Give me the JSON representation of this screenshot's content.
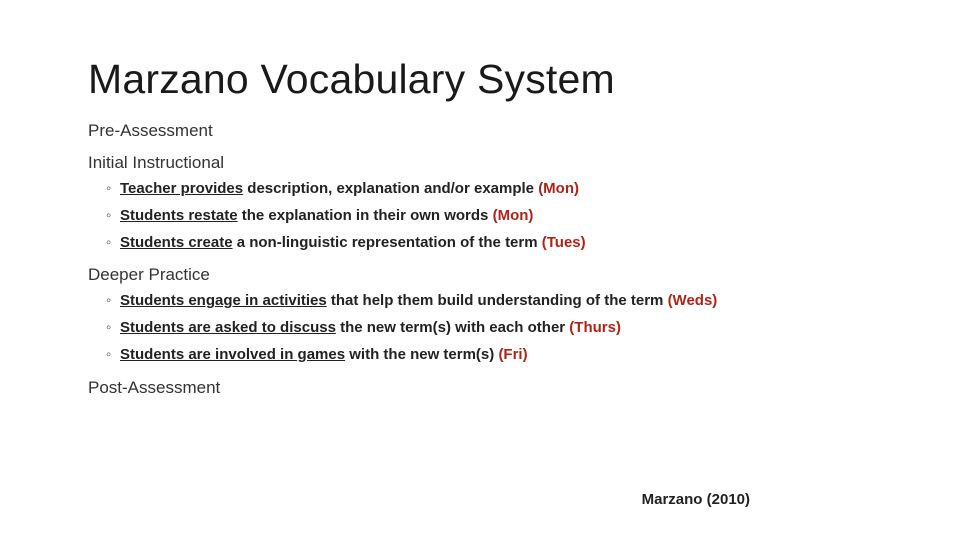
{
  "title": "Marzano Vocabulary System",
  "sections": {
    "pre": "Pre-Assessment",
    "initial": "Initial Instructional",
    "deeper": "Deeper Practice",
    "post": "Post-Assessment"
  },
  "initial_bullets": [
    {
      "under": "Teacher provides",
      "rest": " description, explanation and/or example ",
      "day": "(Mon)"
    },
    {
      "under": "Students restate",
      "rest": " the explanation in their own words ",
      "day": "(Mon)"
    },
    {
      "under": "Students create",
      "rest": " a non-linguistic representation of the term ",
      "day": "(Tues)"
    }
  ],
  "deeper_bullets": [
    {
      "under": "Students engage in activities",
      "rest": " that help them build understanding of the term ",
      "day": "(Weds)"
    },
    {
      "under": "Students are asked to discuss",
      "rest": " the new term(s) with each other ",
      "day": "(Thurs)"
    },
    {
      "under": "Students are involved in games",
      "rest": " with the new term(s) ",
      "day": "(Fri)"
    }
  ],
  "citation": "Marzano (2010)",
  "colors": {
    "day_text": "#b02418",
    "text": "#222222",
    "background": "#ffffff"
  },
  "bullet_marker": "◦"
}
